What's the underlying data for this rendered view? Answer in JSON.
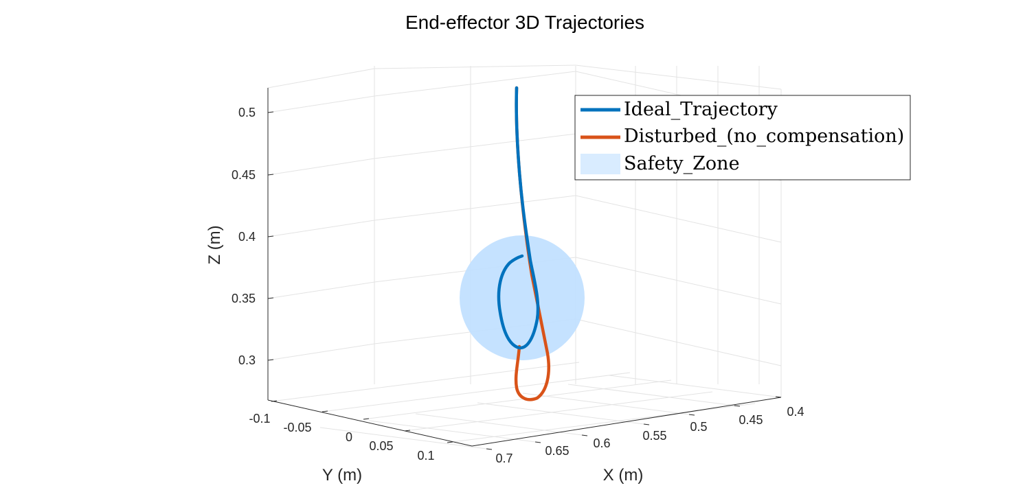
{
  "chart_data": {
    "type": "line",
    "title": "End-effector 3D Trajectories",
    "xlabel": "X (m)",
    "ylabel": "Y (m)",
    "zlabel": "Z (m)",
    "x_ticks": [
      "0.4",
      "0.45",
      "0.5",
      "0.55",
      "0.6",
      "0.65",
      "0.7"
    ],
    "y_ticks": [
      "-0.1",
      "-0.05",
      "0",
      "0.05",
      "0.1"
    ],
    "z_ticks": [
      "0.3",
      "0.35",
      "0.4",
      "0.45",
      "0.5"
    ],
    "grid": true,
    "legend_position": "top-right",
    "series": [
      {
        "name": "Ideal_Trajectory",
        "color": "#0072BD",
        "points_xz_projected": [
          [
            0.6,
            0.52
          ],
          [
            0.6,
            0.47
          ],
          [
            0.605,
            0.43
          ],
          [
            0.61,
            0.4
          ],
          [
            0.615,
            0.37
          ],
          [
            0.62,
            0.35
          ],
          [
            0.615,
            0.32
          ],
          [
            0.6,
            0.31
          ],
          [
            0.592,
            0.33
          ],
          [
            0.588,
            0.36
          ],
          [
            0.605,
            0.385
          ]
        ]
      },
      {
        "name": "Disturbed_(no_compensation)",
        "color": "#D95319",
        "points_xz_projected": [
          [
            0.6,
            0.52
          ],
          [
            0.6,
            0.47
          ],
          [
            0.605,
            0.43
          ],
          [
            0.612,
            0.4
          ],
          [
            0.62,
            0.36
          ],
          [
            0.63,
            0.33
          ],
          [
            0.636,
            0.29
          ],
          [
            0.62,
            0.275
          ],
          [
            0.6,
            0.28
          ],
          [
            0.602,
            0.31
          ]
        ]
      }
    ],
    "safety_zone": {
      "name": "Safety_Zone",
      "type": "sphere",
      "center_z": 0.35,
      "color": "#BFDFFF"
    }
  }
}
